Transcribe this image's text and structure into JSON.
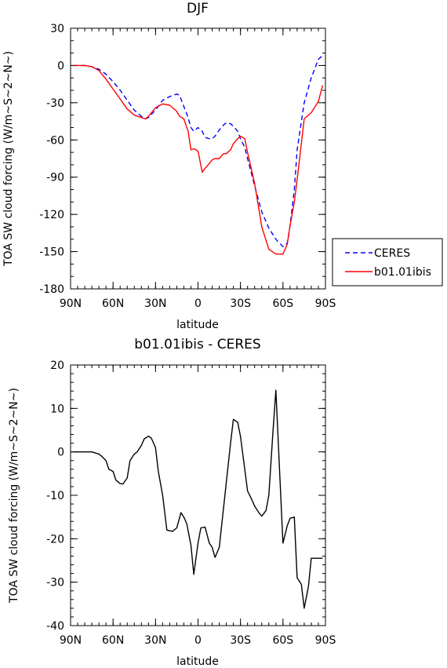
{
  "chart_data": [
    {
      "type": "line",
      "title": "DJF",
      "xlabel": "latitude",
      "ylabel": "TOA SW cloud forcing (W/m~S~2~N~)",
      "xlim": [
        -90,
        90
      ],
      "ylim": [
        -180,
        30
      ],
      "x_ticks": [
        -90,
        -60,
        -30,
        0,
        30,
        60,
        90
      ],
      "x_tick_labels": [
        "90N",
        "60N",
        "30N",
        "0",
        "30S",
        "60S",
        "90S"
      ],
      "y_ticks": [
        -180,
        -150,
        -120,
        -90,
        -60,
        -30,
        0,
        30
      ],
      "y_tick_labels": [
        "-180",
        "-150",
        "-120",
        "-90",
        "-60",
        "-30",
        "0",
        "30"
      ],
      "legend_position": "outside-right",
      "series": [
        {
          "name": "CERES",
          "color": "#0000ff",
          "dash": "dashed",
          "x": [
            -88,
            -80,
            -75,
            -70,
            -65,
            -60,
            -55,
            -50,
            -45,
            -40,
            -37,
            -35,
            -30,
            -25,
            -20,
            -15,
            -13,
            -10,
            -7,
            -5,
            -3,
            0,
            3,
            5,
            8,
            10,
            12,
            15,
            18,
            20,
            23,
            25,
            28,
            30,
            33,
            35,
            40,
            45,
            50,
            55,
            60,
            63,
            65,
            68,
            70,
            75,
            80,
            85,
            88
          ],
          "y": [
            0,
            0,
            -1,
            -3,
            -7,
            -13,
            -20,
            -28,
            -36,
            -41,
            -43,
            -42,
            -36,
            -28,
            -25,
            -23,
            -24,
            -33,
            -42,
            -50,
            -53,
            -50,
            -53,
            -58,
            -59,
            -59,
            -57,
            -52,
            -48,
            -46,
            -47,
            -49,
            -53,
            -59,
            -66,
            -75,
            -97,
            -118,
            -131,
            -140,
            -146,
            -143,
            -129,
            -100,
            -68,
            -30,
            -10,
            5,
            8
          ]
        },
        {
          "name": "b01.01ibis",
          "color": "#ff0000",
          "dash": "solid",
          "x": [
            -88,
            -80,
            -75,
            -70,
            -65,
            -60,
            -55,
            -50,
            -45,
            -40,
            -37,
            -35,
            -30,
            -25,
            -20,
            -15,
            -13,
            -10,
            -7,
            -5,
            -3,
            0,
            3,
            5,
            8,
            10,
            12,
            15,
            18,
            20,
            23,
            25,
            28,
            30,
            33,
            35,
            40,
            45,
            50,
            55,
            60,
            63,
            65,
            68,
            70,
            75,
            80,
            85,
            88
          ],
          "y": [
            0,
            0,
            -1,
            -4,
            -11,
            -19,
            -27,
            -35,
            -40,
            -42,
            -43,
            -41,
            -34,
            -31,
            -32,
            -37,
            -41,
            -43,
            -53,
            -68,
            -67,
            -69,
            -86,
            -83,
            -79,
            -76,
            -75,
            -75,
            -71,
            -71,
            -68,
            -63,
            -59,
            -57,
            -59,
            -70,
            -95,
            -130,
            -148,
            -152,
            -152,
            -144,
            -129,
            -110,
            -92,
            -43,
            -38,
            -29,
            -16
          ]
        }
      ]
    },
    {
      "type": "line",
      "title": "b01.01ibis - CERES",
      "xlabel": "latitude",
      "ylabel": "TOA SW cloud forcing (W/m~S~2~N~)",
      "xlim": [
        -90,
        90
      ],
      "ylim": [
        -40,
        20
      ],
      "x_ticks": [
        -90,
        -60,
        -30,
        0,
        30,
        60,
        90
      ],
      "x_tick_labels": [
        "90N",
        "60N",
        "30N",
        "0",
        "30S",
        "60S",
        "90S"
      ],
      "y_ticks": [
        -40,
        -30,
        -20,
        -10,
        0,
        10,
        20
      ],
      "y_tick_labels": [
        "-40",
        "-30",
        "-20",
        "-10",
        "0",
        "10",
        "20"
      ],
      "series": [
        {
          "color": "#000000",
          "dash": "solid",
          "x": [
            -88,
            -80,
            -75,
            -70,
            -68,
            -65,
            -63,
            -60,
            -58,
            -55,
            -53,
            -50,
            -48,
            -45,
            -43,
            -40,
            -38,
            -35,
            -33,
            -30,
            -28,
            -25,
            -22,
            -18,
            -15,
            -12,
            -10,
            -8,
            -5,
            -3,
            0,
            2,
            5,
            8,
            10,
            12,
            15,
            18,
            20,
            23,
            25,
            28,
            30,
            33,
            35,
            38,
            40,
            43,
            45,
            48,
            50,
            53,
            55,
            58,
            60,
            63,
            65,
            68,
            70,
            73,
            75,
            78,
            80,
            83,
            85,
            88
          ],
          "y": [
            0,
            0,
            0,
            -0.5,
            -1,
            -2,
            -4,
            -4.5,
            -6.5,
            -7.3,
            -7.4,
            -6,
            -2,
            -0.5,
            0,
            1.5,
            3,
            3.6,
            3.2,
            1,
            -4.5,
            -10,
            -18,
            -18.3,
            -17.5,
            -14,
            -15,
            -16.5,
            -21.5,
            -28.2,
            -21,
            -17.5,
            -17.3,
            -21,
            -22,
            -24.3,
            -22,
            -13,
            -7,
            2,
            7.5,
            6.8,
            3.5,
            -4,
            -9,
            -11,
            -12.5,
            -14,
            -14.8,
            -13.5,
            -10,
            5,
            14.2,
            -7,
            -21,
            -17,
            -15.3,
            -15,
            -29,
            -30.5,
            -36,
            -31,
            -24.5,
            -24.5,
            -24.5,
            -24.5
          ]
        }
      ]
    }
  ]
}
